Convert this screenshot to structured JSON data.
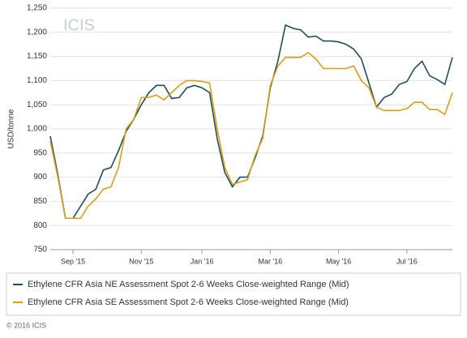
{
  "chart_data": {
    "type": "line",
    "logo": "ICIS",
    "ylabel": "USD/tonne",
    "footer": "© 2016 ICIS",
    "categories": [
      null,
      null,
      null,
      "Sep '15",
      null,
      null,
      null,
      null,
      null,
      null,
      null,
      null,
      "Nov '15",
      null,
      null,
      null,
      null,
      null,
      null,
      null,
      "Jan '16",
      null,
      null,
      null,
      null,
      null,
      null,
      null,
      null,
      "Mar '16",
      null,
      null,
      null,
      null,
      null,
      null,
      null,
      null,
      "May '16",
      null,
      null,
      null,
      null,
      null,
      null,
      null,
      null,
      "Jul '16",
      null,
      null,
      null,
      null,
      null,
      null
    ],
    "series": [
      {
        "name": "Ethylene CFR Asia NE Assessment Spot 2-6 Weeks Close-weighted Range (Mid)",
        "color": "#1f4e5a",
        "values": [
          985,
          905,
          815,
          815,
          840,
          865,
          875,
          915,
          920,
          955,
          995,
          1020,
          1050,
          1075,
          1090,
          1090,
          1063,
          1065,
          1085,
          1090,
          1085,
          1075,
          980,
          910,
          880,
          900,
          900,
          940,
          985,
          1085,
          1140,
          1215,
          1208,
          1205,
          1190,
          1192,
          1182,
          1182,
          1180,
          1175,
          1165,
          1145,
          1095,
          1045,
          1065,
          1072,
          1092,
          1098,
          1125,
          1140,
          1110,
          1102,
          1092,
          1148
        ]
      },
      {
        "name": "Ethylene CFR Asia SE Assessment Spot 2-6 Weeks Close-weighted Range (Mid)",
        "color": "#d4a017",
        "values": [
          975,
          900,
          815,
          815,
          815,
          840,
          855,
          875,
          880,
          920,
          1000,
          1020,
          1065,
          1065,
          1070,
          1060,
          1075,
          1090,
          1100,
          1100,
          1098,
          1095,
          1000,
          920,
          885,
          890,
          895,
          945,
          980,
          1090,
          1130,
          1148,
          1148,
          1148,
          1158,
          1145,
          1125,
          1125,
          1125,
          1125,
          1130,
          1100,
          1085,
          1045,
          1038,
          1038,
          1038,
          1042,
          1055,
          1055,
          1040,
          1040,
          1030,
          1075
        ]
      }
    ],
    "ylim": [
      750,
      1250
    ],
    "yticks": [
      750,
      800,
      850,
      900,
      950,
      {
        "value": 1000,
        "label": "1,000"
      },
      {
        "value": 1050,
        "label": "1,050"
      },
      {
        "value": 1100,
        "label": "1,100"
      },
      {
        "value": 1150,
        "label": "1,150"
      },
      {
        "value": 1200,
        "label": "1,200"
      },
      {
        "value": 1250,
        "label": "1,250"
      }
    ],
    "grid": true
  }
}
